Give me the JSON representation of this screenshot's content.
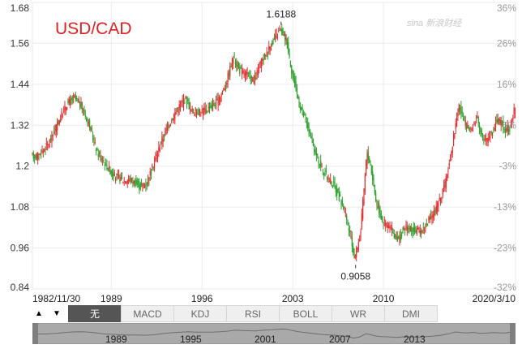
{
  "chart_data": {
    "type": "candlestick",
    "title": "USD/CAD",
    "y_ticks_left": [
      "1.68",
      "1.56",
      "1.44",
      "1.32",
      "1.2",
      "1.08",
      "0.96",
      "0.84"
    ],
    "y_ticks_left_values": [
      1.68,
      1.56,
      1.44,
      1.32,
      1.2,
      1.08,
      0.96,
      0.84
    ],
    "y_ticks_right": [
      "36%",
      "26%",
      "16%",
      "6%",
      "-3%",
      "-13%",
      "-23%",
      "-32%"
    ],
    "ylim": [
      0.84,
      1.68
    ],
    "x_ticks": [
      "1982/11/30",
      "1989",
      "1996",
      "2003",
      "2010",
      "2020/3/10"
    ],
    "x_tick_years": [
      1982.91,
      1989,
      1996,
      2003,
      2010,
      2020.19
    ],
    "xlim": [
      1982.91,
      2020.19
    ],
    "annotations": [
      {
        "label": "1.6188",
        "year": 2002.1,
        "value": 1.6188,
        "position": "above"
      },
      {
        "label": "0.9058",
        "year": 2007.85,
        "value": 0.9058,
        "position": "below"
      }
    ],
    "up_color": "#e03030",
    "down_color": "#2ca02c",
    "series_points": [
      [
        1982.91,
        1.23
      ],
      [
        1983.5,
        1.23
      ],
      [
        1984.3,
        1.27
      ],
      [
        1985.0,
        1.33
      ],
      [
        1985.6,
        1.38
      ],
      [
        1986.2,
        1.4
      ],
      [
        1986.7,
        1.38
      ],
      [
        1987.3,
        1.33
      ],
      [
        1988.0,
        1.24
      ],
      [
        1988.6,
        1.21
      ],
      [
        1989.3,
        1.17
      ],
      [
        1990.0,
        1.16
      ],
      [
        1990.6,
        1.16
      ],
      [
        1991.3,
        1.14
      ],
      [
        1991.8,
        1.15
      ],
      [
        1992.3,
        1.2
      ],
      [
        1992.9,
        1.27
      ],
      [
        1993.5,
        1.32
      ],
      [
        1994.2,
        1.37
      ],
      [
        1994.8,
        1.4
      ],
      [
        1995.3,
        1.36
      ],
      [
        1996.0,
        1.36
      ],
      [
        1996.6,
        1.37
      ],
      [
        1997.3,
        1.39
      ],
      [
        1997.9,
        1.44
      ],
      [
        1998.5,
        1.52
      ],
      [
        1999.0,
        1.48
      ],
      [
        1999.5,
        1.47
      ],
      [
        2000.1,
        1.45
      ],
      [
        2000.6,
        1.5
      ],
      [
        2001.3,
        1.55
      ],
      [
        2001.8,
        1.58
      ],
      [
        2002.1,
        1.6
      ],
      [
        2002.6,
        1.57
      ],
      [
        2003.0,
        1.48
      ],
      [
        2003.6,
        1.38
      ],
      [
        2004.2,
        1.32
      ],
      [
        2004.8,
        1.24
      ],
      [
        2005.5,
        1.18
      ],
      [
        2006.3,
        1.14
      ],
      [
        2007.0,
        1.08
      ],
      [
        2007.5,
        1.0
      ],
      [
        2007.85,
        0.93
      ],
      [
        2008.3,
        1.0
      ],
      [
        2008.8,
        1.24
      ],
      [
        2009.1,
        1.2
      ],
      [
        2009.5,
        1.1
      ],
      [
        2010.0,
        1.04
      ],
      [
        2010.6,
        1.02
      ],
      [
        2011.2,
        0.98
      ],
      [
        2011.8,
        1.02
      ],
      [
        2012.4,
        1.01
      ],
      [
        2013.0,
        1.01
      ],
      [
        2013.6,
        1.04
      ],
      [
        2014.2,
        1.08
      ],
      [
        2014.8,
        1.14
      ],
      [
        2015.3,
        1.24
      ],
      [
        2015.9,
        1.38
      ],
      [
        2016.3,
        1.33
      ],
      [
        2016.8,
        1.3
      ],
      [
        2017.3,
        1.35
      ],
      [
        2017.8,
        1.27
      ],
      [
        2018.3,
        1.29
      ],
      [
        2018.9,
        1.34
      ],
      [
        2019.5,
        1.31
      ],
      [
        2019.9,
        1.31
      ],
      [
        2020.19,
        1.37
      ]
    ]
  },
  "title": "USD/CAD",
  "watermark": "sina 新浪财经",
  "toolbar": {
    "scroll_up": "▲",
    "scroll_down": "▼",
    "tabs": [
      "无",
      "MACD",
      "KDJ",
      "RSI",
      "BOLL",
      "WR",
      "DMI"
    ],
    "active_tab": "无"
  },
  "navigator": {
    "years": [
      "1989",
      "1995",
      "2001",
      "2007",
      "2013"
    ]
  }
}
